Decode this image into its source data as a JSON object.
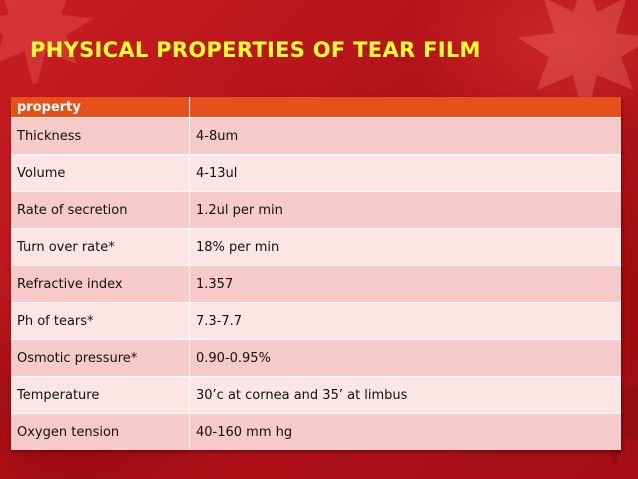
{
  "slide": {
    "title": "PHYSICAL PROPERTIES OF TEAR FILM"
  },
  "table": {
    "header": [
      "property",
      ""
    ],
    "rows": [
      {
        "property": "Thickness",
        "value": "4-8um"
      },
      {
        "property": "Volume",
        "value": "4-13ul"
      },
      {
        "property": "Rate of secretion",
        "value": "1.2ul per min"
      },
      {
        "property": "Turn over rate*",
        "value": "18% per min"
      },
      {
        "property": "Refractive index",
        "value": "1.357"
      },
      {
        "property": "Ph of tears*",
        "value": "7.3-7.7"
      },
      {
        "property": "Osmotic pressure*",
        "value": "0.90-0.95%"
      },
      {
        "property": "Temperature",
        "value": "30’c at cornea and 35’ at limbus"
      },
      {
        "property": "Oxygen tension",
        "value": "40-160 mm hg"
      }
    ]
  },
  "colors": {
    "background": "#b8141b",
    "title": "#ffff33",
    "header_fill": "#e8501a",
    "row_odd": "#f5cac8",
    "row_even": "#fbe6e5"
  },
  "icons": [
    "maple-leaf-icon"
  ]
}
